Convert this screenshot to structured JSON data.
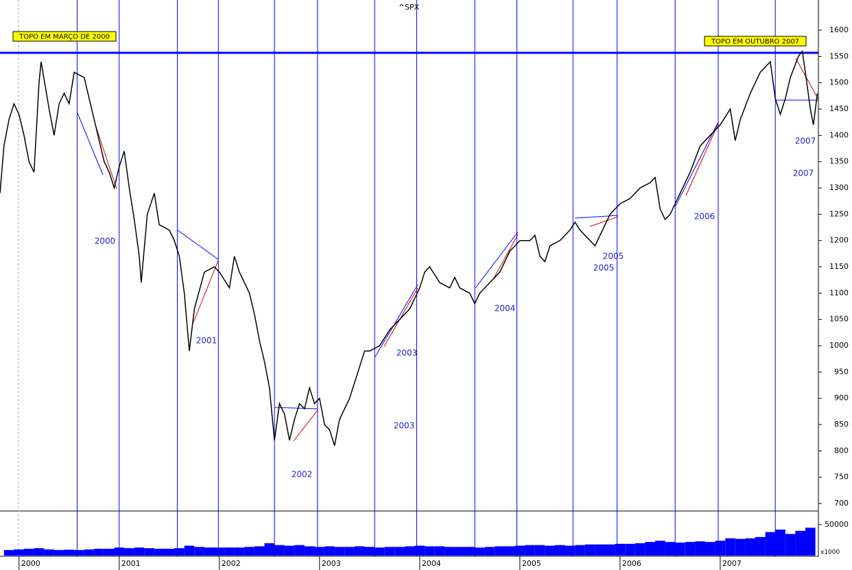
{
  "chart_data": [
    {
      "type": "line",
      "title": "^SPX",
      "color": "#000000",
      "x": [
        1999.81,
        1999.85,
        1999.9,
        1999.95,
        2000.0,
        2000.05,
        2000.1,
        2000.15,
        2000.2,
        2000.22,
        2000.3,
        2000.35,
        2000.4,
        2000.45,
        2000.5,
        2000.55,
        2000.65,
        2000.7,
        2000.75,
        2000.8,
        2000.85,
        2000.9,
        2000.95,
        2001.0,
        2001.05,
        2001.1,
        2001.15,
        2001.2,
        2001.22,
        2001.28,
        2001.35,
        2001.4,
        2001.5,
        2001.55,
        2001.6,
        2001.65,
        2001.7,
        2001.75,
        2001.85,
        2001.95,
        2002.0,
        2002.1,
        2002.15,
        2002.2,
        2002.3,
        2002.35,
        2002.4,
        2002.45,
        2002.5,
        2002.55,
        2002.6,
        2002.65,
        2002.7,
        2002.75,
        2002.8,
        2002.85,
        2002.9,
        2002.95,
        2003.0,
        2003.05,
        2003.1,
        2003.15,
        2003.2,
        2003.3,
        2003.35,
        2003.4,
        2003.45,
        2003.5,
        2003.6,
        2003.7,
        2003.8,
        2003.9,
        2004.0,
        2004.05,
        2004.1,
        2004.2,
        2004.3,
        2004.35,
        2004.4,
        2004.5,
        2004.55,
        2004.6,
        2004.7,
        2004.8,
        2004.9,
        2005.0,
        2005.1,
        2005.15,
        2005.2,
        2005.25,
        2005.3,
        2005.4,
        2005.5,
        2005.55,
        2005.6,
        2005.7,
        2005.75,
        2005.8,
        2005.9,
        2006.0,
        2006.1,
        2006.2,
        2006.3,
        2006.35,
        2006.4,
        2006.45,
        2006.5,
        2006.6,
        2006.7,
        2006.8,
        2006.9,
        2007.0,
        2007.1,
        2007.15,
        2007.2,
        2007.3,
        2007.4,
        2007.5,
        2007.55,
        2007.6,
        2007.65,
        2007.7,
        2007.78,
        2007.82,
        2007.85,
        2007.9,
        2007.93,
        2007.97
      ],
      "values": [
        1290,
        1380,
        1430,
        1460,
        1440,
        1400,
        1350,
        1330,
        1500,
        1540,
        1450,
        1400,
        1460,
        1480,
        1460,
        1520,
        1510,
        1470,
        1430,
        1390,
        1350,
        1330,
        1300,
        1340,
        1370,
        1300,
        1240,
        1170,
        1120,
        1250,
        1290,
        1230,
        1220,
        1200,
        1170,
        1100,
        990,
        1070,
        1140,
        1150,
        1140,
        1110,
        1170,
        1140,
        1100,
        1060,
        1010,
        970,
        920,
        820,
        890,
        870,
        820,
        860,
        890,
        880,
        920,
        890,
        900,
        850,
        840,
        810,
        860,
        900,
        930,
        960,
        990,
        990,
        1000,
        1030,
        1050,
        1070,
        1110,
        1140,
        1150,
        1120,
        1110,
        1130,
        1110,
        1100,
        1080,
        1100,
        1120,
        1140,
        1180,
        1200,
        1200,
        1210,
        1170,
        1160,
        1190,
        1200,
        1220,
        1235,
        1220,
        1200,
        1190,
        1210,
        1250,
        1270,
        1280,
        1300,
        1310,
        1320,
        1260,
        1240,
        1250,
        1290,
        1330,
        1380,
        1400,
        1420,
        1450,
        1390,
        1430,
        1480,
        1520,
        1540,
        1470,
        1440,
        1470,
        1510,
        1550,
        1560,
        1520,
        1450,
        1420,
        1480
      ],
      "xlim": [
        1999.81,
        2007.98
      ],
      "ylim": [
        685.7,
        1657.4
      ],
      "yticks": [
        700,
        750,
        800,
        850,
        900,
        950,
        1000,
        1050,
        1100,
        1150,
        1200,
        1250,
        1300,
        1350,
        1400,
        1450,
        1500,
        1550,
        1600
      ],
      "hline": 1557,
      "hline_color": "#0000ff",
      "vlines": [
        2000.58,
        2001.0,
        2001.58,
        2001.99,
        2002.55,
        2002.98,
        2003.55,
        2003.97,
        2004.55,
        2004.97,
        2005.53,
        2005.97,
        2006.55,
        2006.98,
        2007.55
      ],
      "vline_color": "#0000ff",
      "callouts": [
        "TOPO EM MARÇO DE 2000",
        "TOPO EM OUTUBRO 2007"
      ],
      "annotations": [
        "2000",
        "2001",
        "2002",
        "2003",
        "2003",
        "2004",
        "2005",
        "2005",
        "2006",
        "2007",
        "2007"
      ]
    },
    {
      "type": "bar",
      "color": "#0000ff",
      "y_label": "x1000",
      "x": [
        1999.9,
        2000.0,
        2000.1,
        2000.2,
        2000.3,
        2000.4,
        2000.5,
        2000.6,
        2000.7,
        2000.8,
        2000.9,
        2001.0,
        2001.1,
        2001.2,
        2001.3,
        2001.4,
        2001.5,
        2001.6,
        2001.7,
        2001.8,
        2001.9,
        2002.0,
        2002.1,
        2002.2,
        2002.3,
        2002.4,
        2002.5,
        2002.6,
        2002.7,
        2002.8,
        2002.9,
        2003.0,
        2003.1,
        2003.2,
        2003.3,
        2003.4,
        2003.5,
        2003.6,
        2003.7,
        2003.8,
        2003.9,
        2004.0,
        2004.1,
        2004.2,
        2004.3,
        2004.4,
        2004.5,
        2004.6,
        2004.7,
        2004.8,
        2004.9,
        2005.0,
        2005.1,
        2005.2,
        2005.3,
        2005.4,
        2005.5,
        2005.6,
        2005.7,
        2005.8,
        2005.9,
        2006.0,
        2006.1,
        2006.2,
        2006.3,
        2006.4,
        2006.5,
        2006.6,
        2006.7,
        2006.8,
        2006.9,
        2007.0,
        2007.1,
        2007.2,
        2007.3,
        2007.4,
        2007.5,
        2007.6,
        2007.7,
        2007.8,
        2007.9
      ],
      "values": [
        9000,
        10000,
        11000,
        12000,
        10000,
        9000,
        9500,
        9000,
        10000,
        11000,
        11000,
        13000,
        12000,
        13000,
        12000,
        11000,
        11000,
        12000,
        16000,
        14000,
        13000,
        13000,
        13000,
        13000,
        14000,
        15000,
        20000,
        17000,
        16000,
        17000,
        15000,
        14000,
        15000,
        14000,
        14000,
        15000,
        14000,
        13000,
        14000,
        14000,
        15000,
        16000,
        15000,
        15000,
        14000,
        14000,
        14000,
        13000,
        14000,
        15000,
        15000,
        16000,
        17000,
        17000,
        16000,
        17000,
        16000,
        17000,
        18000,
        18000,
        18000,
        19000,
        19000,
        20000,
        22000,
        24000,
        22000,
        21000,
        22000,
        23000,
        22000,
        24000,
        28000,
        27000,
        28000,
        30000,
        38000,
        42000,
        35000,
        40000,
        45000
      ],
      "xlim": [
        1999.81,
        2007.98
      ],
      "ylim": [
        0,
        72000
      ],
      "yticks": [
        50000
      ],
      "xticks": [
        2000,
        2001,
        2002,
        2003,
        2004,
        2005,
        2006,
        2007
      ]
    }
  ]
}
